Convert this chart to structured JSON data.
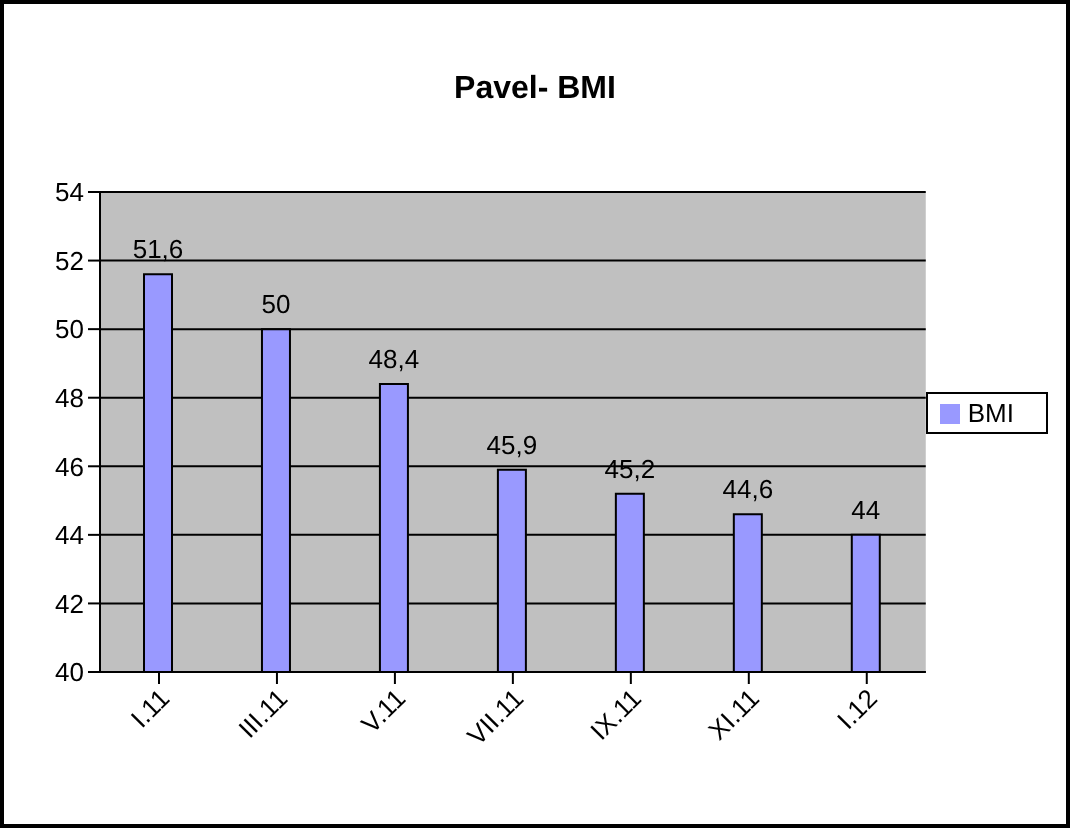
{
  "chart_data": {
    "type": "bar",
    "title": "Pavel- BMI",
    "categories": [
      "I.11",
      "III.11",
      "V.11",
      "VII.11",
      "IX.11",
      "XI.11",
      "I.12"
    ],
    "series": [
      {
        "name": "BMI",
        "color": "#9999ff",
        "values": [
          51.6,
          50,
          48.4,
          45.9,
          45.2,
          44.6,
          44
        ],
        "value_labels": [
          "51,6",
          "50",
          "48,4",
          "45,9",
          "45,2",
          "44,6",
          "44"
        ]
      }
    ],
    "ylim": [
      40,
      54
    ],
    "yticks": [
      40,
      42,
      44,
      46,
      48,
      50,
      52,
      54
    ],
    "grid": "y",
    "legend": "right"
  }
}
